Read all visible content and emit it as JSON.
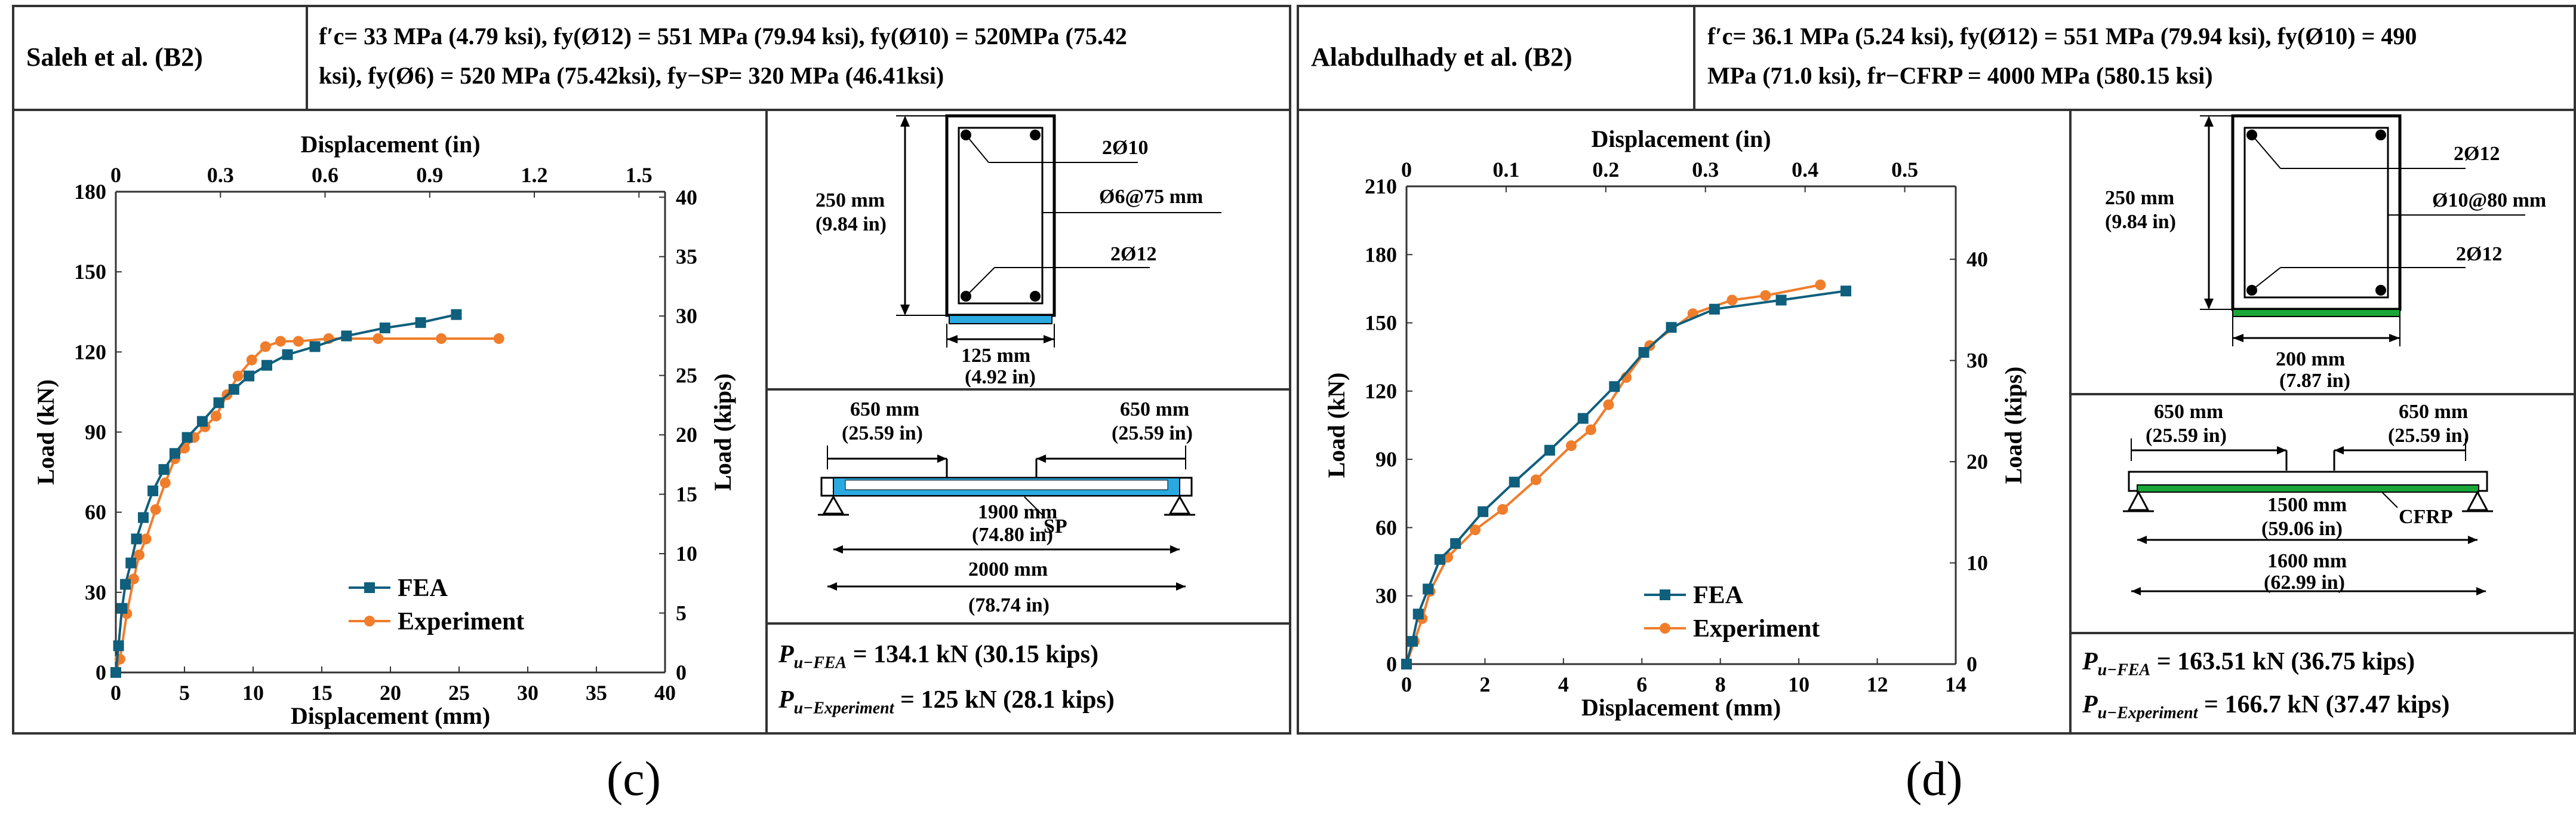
{
  "panels": [
    {
      "header": {
        "name": "Saleh et al. (B2)",
        "props_line1": "f′c= 33 MPa (4.79 ksi), fy(Ø12) = 551 MPa (79.94 ksi), fy(Ø10) = 520MPa (75.42",
        "props_line2": "ksi), fy(Ø6) = 520 MPa (75.42ksi), fy−SP= 320 MPa (46.41ksi)"
      },
      "section": {
        "height_label": "250 mm",
        "height_label_in": "(9.84 in)",
        "width_label": "125 mm",
        "width_label_in": "(4.92 in)",
        "top_bar": "2Ø10",
        "stirrup": "Ø6@75 mm",
        "bottom_bar": "2Ø12",
        "strengthening_color": "#29a9e0"
      },
      "elevation": {
        "shear_span_left": "650 mm",
        "shear_span_left_in": "(25.59 in)",
        "shear_span_right": "650 mm",
        "shear_span_right_in": "(25.59 in)",
        "strip_length": "1900 mm",
        "strip_length_in": "(74.80 in)",
        "span": "2000 mm",
        "span_in": "(78.74 in)",
        "strip_label": "SP"
      },
      "results": {
        "fea_symbol": "P",
        "fea_sub": "u−FEA",
        "fea_value": " = 134.1 kN (30.15 kips)",
        "exp_symbol": "P",
        "exp_sub": "u−Experiment",
        "exp_value": " = 125 kN (28.1 kips)"
      },
      "caption": "(c)"
    },
    {
      "header": {
        "name": "Alabdulhady et al. (B2)",
        "props_line1": "f′c= 36.1 MPa (5.24 ksi), fy(Ø12) = 551 MPa (79.94 ksi), fy(Ø10) = 490",
        "props_line2": "MPa (71.0 ksi), fr−CFRP = 4000 MPa (580.15 ksi)"
      },
      "section": {
        "height_label": "250 mm",
        "height_label_in": "(9.84 in)",
        "width_label": "200 mm",
        "width_label_in": "(7.87 in)",
        "top_bar": "2Ø12",
        "stirrup": "Ø10@80 mm",
        "bottom_bar": "2Ø12",
        "strengthening_color": "#1aa538"
      },
      "elevation": {
        "shear_span_left": "650 mm",
        "shear_span_left_in": "(25.59 in)",
        "shear_span_right": "650 mm",
        "shear_span_right_in": "(25.59 in)",
        "strip_length": "1500 mm",
        "strip_length_in": "(59.06 in)",
        "span": "1600 mm",
        "span_in": "(62.99 in)",
        "strip_label": "CFRP"
      },
      "results": {
        "fea_symbol": "P",
        "fea_sub": "u−FEA",
        "fea_value": " = 163.51 kN (36.75 kips)",
        "exp_symbol": "P",
        "exp_sub": "u−Experiment",
        "exp_value": " = 166.7 kN (37.47 kips)"
      },
      "caption": "(d)"
    }
  ],
  "colors": {
    "fea": "#0f5f7d",
    "experiment": "#f07d2b",
    "frame": "#333333"
  },
  "chart_data": [
    {
      "type": "line",
      "xlabel": "Displacement (mm)",
      "ylabel": "Load (kN)",
      "x2label": "Displacement (in)",
      "y2label": "Load (kips)",
      "xlim": [
        0,
        40
      ],
      "ylim": [
        0,
        180
      ],
      "x_ticks": [
        0,
        5,
        10,
        15,
        20,
        25,
        30,
        35,
        40
      ],
      "y_ticks": [
        0,
        30,
        60,
        90,
        120,
        150,
        180
      ],
      "x2_ticks": [
        "0",
        "0.3",
        "0.6",
        "0.9",
        "1.2",
        "1.5"
      ],
      "x2_tick_values": [
        0,
        0.3,
        0.6,
        0.9,
        1.2,
        1.5
      ],
      "y2_ticks": [
        "0",
        "5",
        "10",
        "15",
        "20",
        "25",
        "30",
        "35",
        "40"
      ],
      "y2_tick_values": [
        0,
        5,
        10,
        15,
        20,
        25,
        30,
        35,
        40
      ],
      "legend_position": "bottom-center",
      "series": [
        {
          "name": "FEA",
          "marker": "square",
          "x": [
            0,
            0.2,
            0.45,
            0.7,
            1.1,
            1.5,
            2.0,
            2.7,
            3.5,
            4.3,
            5.2,
            6.3,
            7.5,
            8.6,
            9.7,
            11.0,
            12.5,
            14.5,
            16.8,
            19.6,
            22.2,
            24.8
          ],
          "y": [
            0,
            10,
            24,
            33,
            41,
            50,
            58,
            68,
            76,
            82,
            88,
            94,
            101,
            106,
            111,
            115,
            119,
            122,
            126,
            129,
            131,
            134
          ]
        },
        {
          "name": "Experiment",
          "marker": "circle",
          "x": [
            0,
            0.3,
            0.8,
            1.3,
            1.7,
            2.2,
            2.9,
            3.6,
            4.3,
            5.0,
            5.7,
            6.5,
            7.3,
            8.1,
            8.9,
            9.9,
            10.9,
            12.0,
            13.3,
            15.5,
            19.1,
            23.7,
            27.9
          ],
          "y": [
            0,
            5,
            22,
            35,
            44,
            50,
            61,
            71,
            80,
            84,
            88,
            92,
            96,
            104,
            111,
            117,
            122,
            124,
            124,
            125,
            125,
            125,
            125
          ]
        }
      ]
    },
    {
      "type": "line",
      "xlabel": "Displacement (mm)",
      "ylabel": "Load (kN)",
      "x2label": "Displacement (in)",
      "y2label": "Load (kips)",
      "xlim": [
        0,
        14
      ],
      "ylim": [
        0,
        210
      ],
      "x_ticks": [
        0,
        2,
        4,
        6,
        8,
        10,
        12,
        14
      ],
      "y_ticks": [
        0,
        30,
        60,
        90,
        120,
        150,
        180,
        210
      ],
      "x2_ticks": [
        "0",
        "0.1",
        "0.2",
        "0.3",
        "0.4",
        "0.5"
      ],
      "x2_tick_values": [
        0,
        0.1,
        0.2,
        0.3,
        0.4,
        0.5
      ],
      "y2_ticks": [
        "0",
        "10",
        "20",
        "30",
        "40"
      ],
      "y2_tick_values": [
        0,
        10,
        20,
        30,
        40
      ],
      "legend_position": "bottom-center",
      "series": [
        {
          "name": "FEA",
          "marker": "square",
          "x": [
            0,
            0.15,
            0.3,
            0.55,
            0.85,
            1.25,
            1.95,
            2.75,
            3.65,
            4.5,
            5.3,
            6.05,
            6.75,
            7.85,
            9.55,
            11.2
          ],
          "y": [
            0,
            10,
            22,
            33,
            46,
            53,
            67,
            80,
            94,
            108,
            122,
            137,
            148,
            156,
            160,
            164
          ]
        },
        {
          "name": "Experiment",
          "marker": "circle",
          "x": [
            0,
            0.2,
            0.4,
            0.6,
            1.05,
            1.75,
            2.45,
            3.3,
            4.2,
            4.7,
            5.15,
            5.6,
            6.2,
            7.3,
            8.3,
            9.15,
            10.55
          ],
          "y": [
            0,
            10,
            20,
            32,
            47,
            59,
            68,
            81,
            96,
            103,
            114,
            126,
            140,
            154,
            160,
            162,
            166.7
          ]
        }
      ]
    }
  ]
}
